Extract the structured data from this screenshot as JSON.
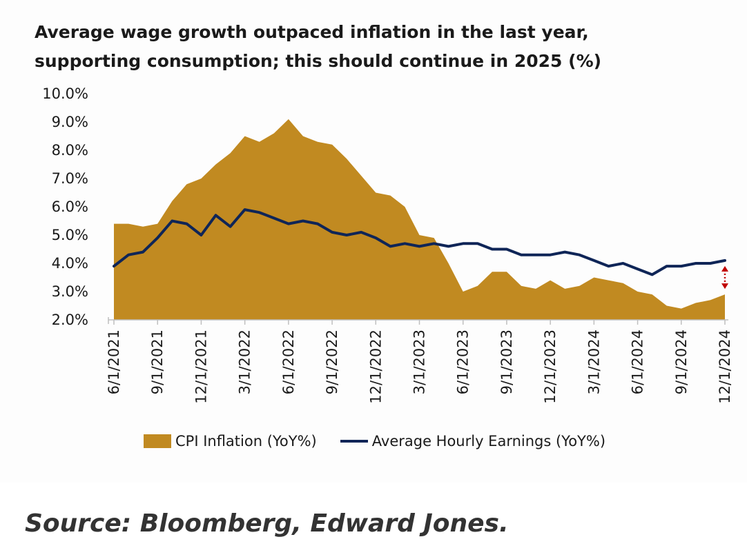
{
  "title_lines": [
    "Average wage growth outpaced inflation in the last year,",
    "supporting consumption; this should continue in 2025 (%)"
  ],
  "source": "Source: Bloomberg, Edward Jones.",
  "colors": {
    "cpi": "#c18a21",
    "earnings": "#0f2557",
    "gap_arrow": "#c00000",
    "axis": "#bfbfbf",
    "text": "#1a1a1a"
  },
  "chart_data": {
    "type": "area",
    "title": "Average wage growth outpaced inflation in the last year, supporting consumption; this should continue in 2025 (%)",
    "x": [
      "6/1/2021",
      "7/1/2021",
      "8/1/2021",
      "9/1/2021",
      "10/1/2021",
      "11/1/2021",
      "12/1/2021",
      "1/1/2022",
      "2/1/2022",
      "3/1/2022",
      "4/1/2022",
      "5/1/2022",
      "6/1/2022",
      "7/1/2022",
      "8/1/2022",
      "9/1/2022",
      "10/1/2022",
      "11/1/2022",
      "12/1/2022",
      "1/1/2023",
      "2/1/2023",
      "3/1/2023",
      "4/1/2023",
      "5/1/2023",
      "6/1/2023",
      "7/1/2023",
      "8/1/2023",
      "9/1/2023",
      "10/1/2023",
      "11/1/2023",
      "12/1/2023",
      "1/1/2024",
      "2/1/2024",
      "3/1/2024",
      "4/1/2024",
      "5/1/2024",
      "6/1/2024",
      "7/1/2024",
      "8/1/2024",
      "9/1/2024",
      "10/1/2024",
      "11/1/2024",
      "12/1/2024"
    ],
    "x_tick_labels": [
      "6/1/2021",
      "9/1/2021",
      "12/1/2021",
      "3/1/2022",
      "6/1/2022",
      "9/1/2022",
      "12/1/2022",
      "3/1/2023",
      "6/1/2023",
      "9/1/2023",
      "12/1/2023",
      "3/1/2024",
      "6/1/2024",
      "9/1/2024",
      "12/1/2024"
    ],
    "x_tick_indices": [
      0,
      3,
      6,
      9,
      12,
      15,
      18,
      21,
      24,
      27,
      30,
      33,
      36,
      39,
      42
    ],
    "y_tick_labels": [
      "10.0%",
      "9.0%",
      "8.0%",
      "7.0%",
      "6.0%",
      "5.0%",
      "4.0%",
      "3.0%",
      "2.0%"
    ],
    "ylim": [
      2.0,
      10.0
    ],
    "series": [
      {
        "name": "CPI Inflation (YoY%)",
        "kind": "area",
        "values": [
          5.4,
          5.4,
          5.3,
          5.4,
          6.2,
          6.8,
          7.0,
          7.5,
          7.9,
          8.5,
          8.3,
          8.6,
          9.1,
          8.5,
          8.3,
          8.2,
          7.7,
          7.1,
          6.5,
          6.4,
          6.0,
          5.0,
          4.9,
          4.0,
          3.0,
          3.2,
          3.7,
          3.7,
          3.2,
          3.1,
          3.4,
          3.1,
          3.2,
          3.5,
          3.4,
          3.3,
          3.0,
          2.9,
          2.5,
          2.4,
          2.6,
          2.7,
          2.9
        ]
      },
      {
        "name": "Average Hourly Earnings (YoY%)",
        "kind": "line",
        "values": [
          3.9,
          4.3,
          4.4,
          4.9,
          5.5,
          5.4,
          5.0,
          5.7,
          5.3,
          5.9,
          5.8,
          5.6,
          5.4,
          5.5,
          5.4,
          5.1,
          5.0,
          5.1,
          4.9,
          4.6,
          4.7,
          4.6,
          4.7,
          4.6,
          4.7,
          4.7,
          4.5,
          4.5,
          4.3,
          4.3,
          4.3,
          4.4,
          4.3,
          4.1,
          3.9,
          4.0,
          3.8,
          3.6,
          3.9,
          3.9,
          4.0,
          4.0,
          4.1
        ]
      }
    ],
    "annotations": [
      {
        "type": "double-arrow",
        "at": "12/1/2024",
        "from": 2.9,
        "to": 4.1
      }
    ],
    "grid": false,
    "legend": "bottom"
  }
}
